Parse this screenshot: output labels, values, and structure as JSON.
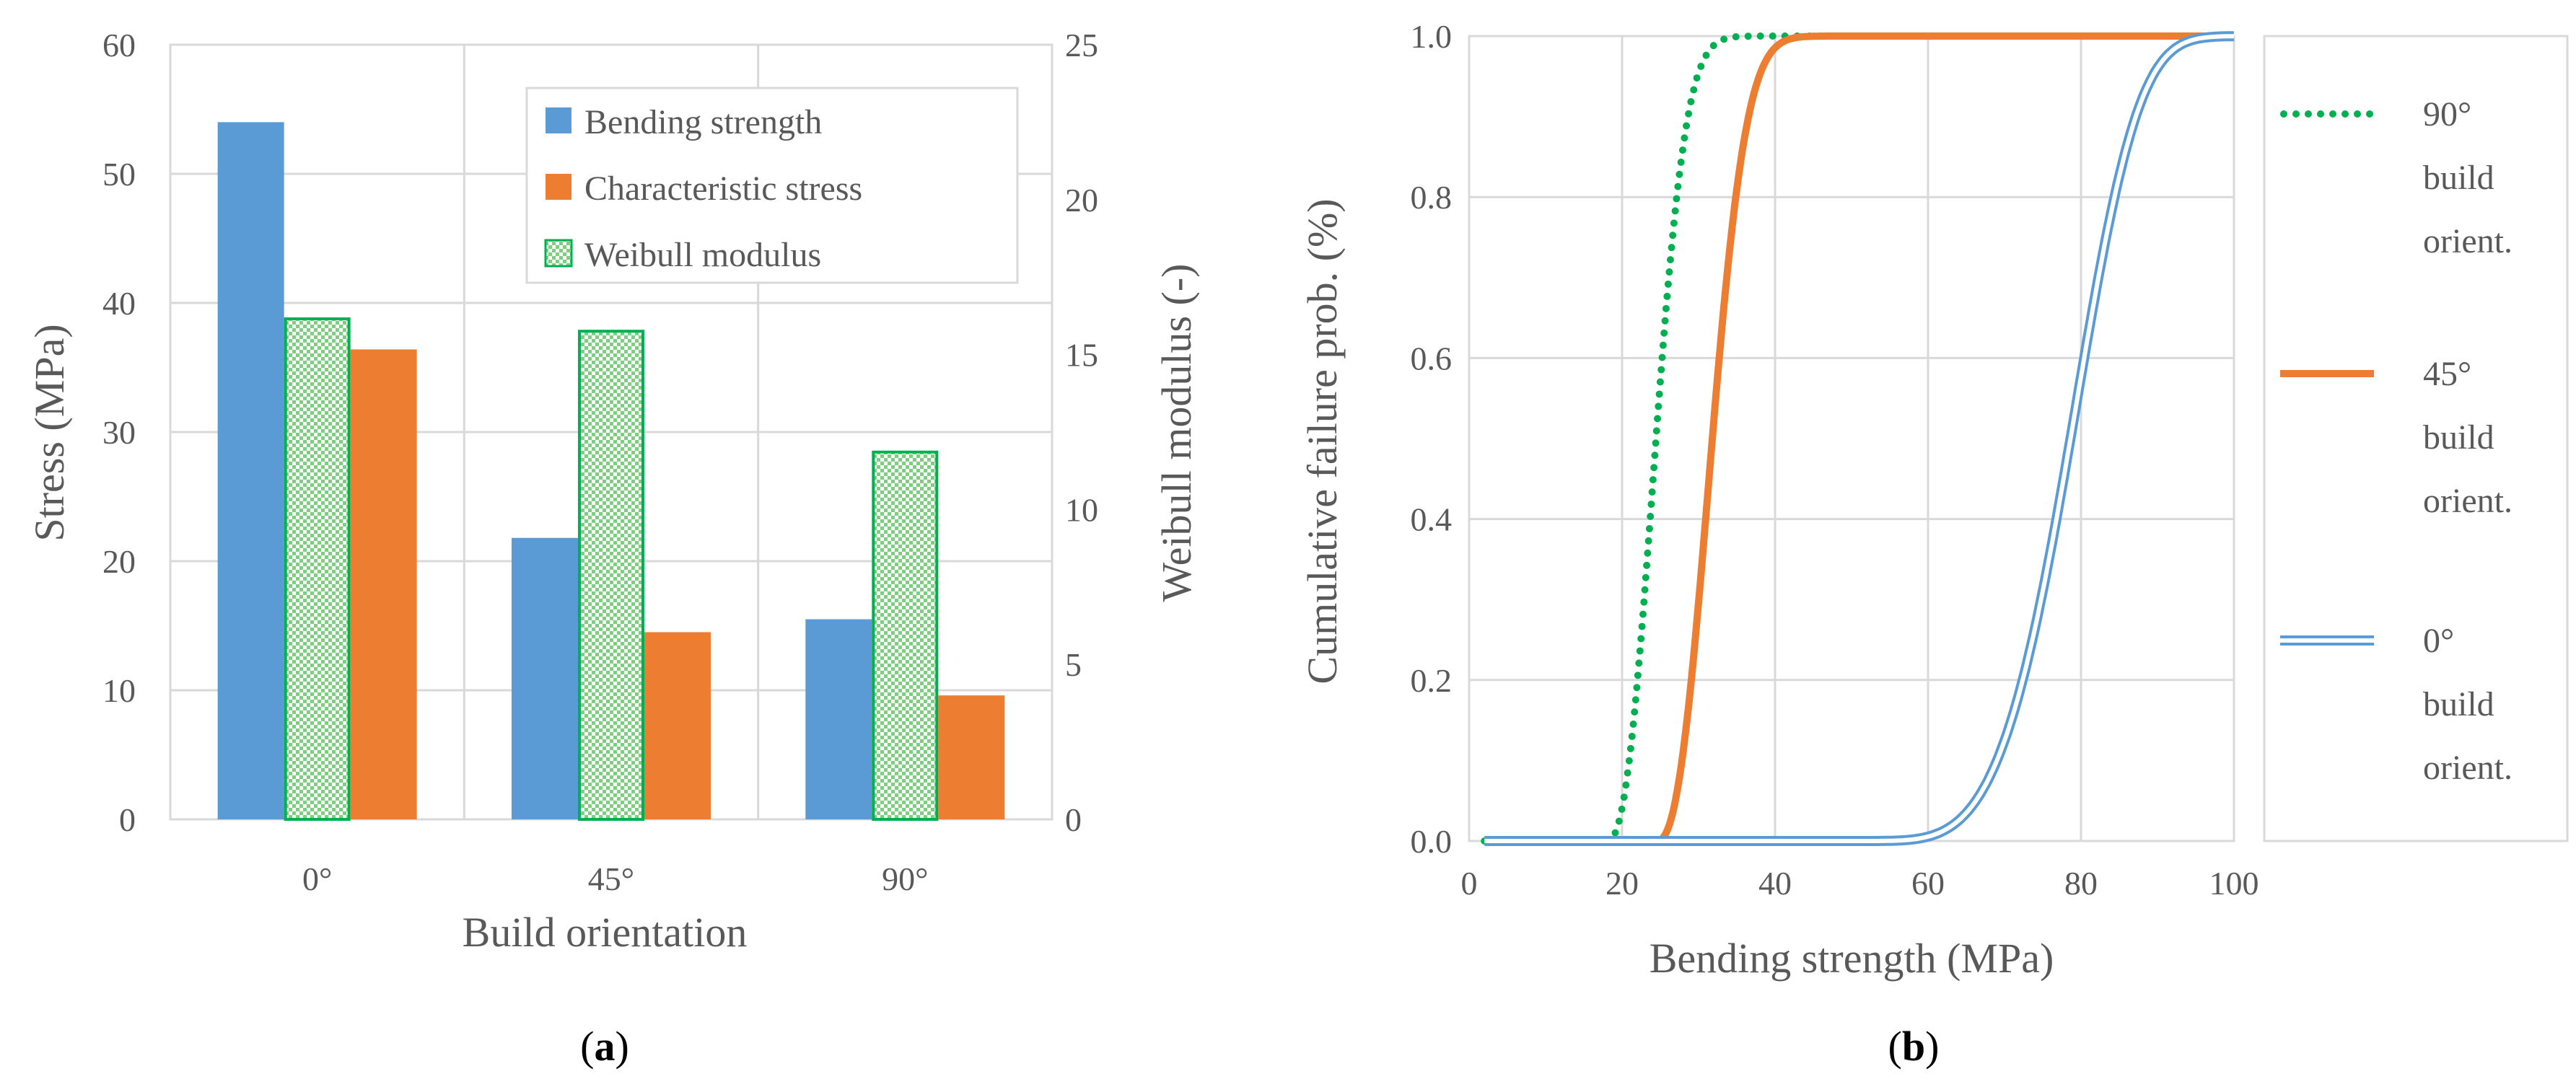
{
  "chart_data": [
    {
      "type": "bar",
      "panel_label": "a",
      "categories": [
        "0°",
        "45°",
        "90°"
      ],
      "xlabel": "Build orientation",
      "ylabel": "Stress (MPa)",
      "ylim": [
        0,
        60
      ],
      "yticks": [
        "0",
        "10",
        "20",
        "30",
        "40",
        "50",
        "60"
      ],
      "y2label": "Weibull modulus (-)",
      "y2lim": [
        0,
        25
      ],
      "y2ticks": [
        "0",
        "5",
        "10",
        "15",
        "20",
        "25"
      ],
      "series": [
        {
          "name": "Bending strength",
          "axis": "left",
          "color": "#5b9bd5",
          "pattern": "solid",
          "values": [
            54,
            21.8,
            15.5
          ]
        },
        {
          "name": "Weibull modulus",
          "axis": "right",
          "color": "#00b050",
          "pattern": "checkered",
          "values": [
            16.2,
            15.8,
            11.9
          ]
        },
        {
          "name": "Characteristic stress",
          "axis": "left",
          "color": "#ed7d31",
          "pattern": "solid",
          "values": [
            36.4,
            14.5,
            9.6
          ]
        }
      ],
      "legend": [
        "Bending strength",
        "Characteristic stress",
        "Weibull modulus"
      ],
      "legend_position": "top-right",
      "grid": true
    },
    {
      "type": "line",
      "panel_label": "b",
      "xlabel": "Bending strength (MPa)",
      "ylabel": "Cumulative failure prob. (%)",
      "xlim": [
        0,
        100
      ],
      "ylim": [
        0,
        1.0
      ],
      "xticks": [
        "0",
        "20",
        "40",
        "60",
        "80",
        "100"
      ],
      "yticks": [
        "0.0",
        "0.2",
        "0.4",
        "0.6",
        "0.8",
        "1.0"
      ],
      "grid": true,
      "legend_position": "right",
      "series": [
        {
          "name": "90° build orient.",
          "label_lines": [
            "90°",
            "build",
            "orient."
          ],
          "color": "#00b050",
          "style": "dotted",
          "model": "weibull",
          "x0": 18,
          "scale": 7.5,
          "shape": 2.4,
          "x_range": [
            2,
            100
          ]
        },
        {
          "name": "45° build orient.",
          "label_lines": [
            "45°",
            "build",
            "orient."
          ],
          "color": "#ed7d31",
          "style": "solid",
          "model": "weibull",
          "x0": 24.5,
          "scale": 8.5,
          "shape": 2.4,
          "x_range": [
            2,
            100
          ]
        },
        {
          "name": "0° build orient.",
          "label_lines": [
            "0°",
            "build",
            "orient."
          ],
          "color": "#5b9bd5",
          "style": "double",
          "model": "weibull",
          "x0": 50,
          "scale": 31,
          "shape": 4.6,
          "x_range": [
            2,
            100
          ]
        }
      ]
    }
  ]
}
